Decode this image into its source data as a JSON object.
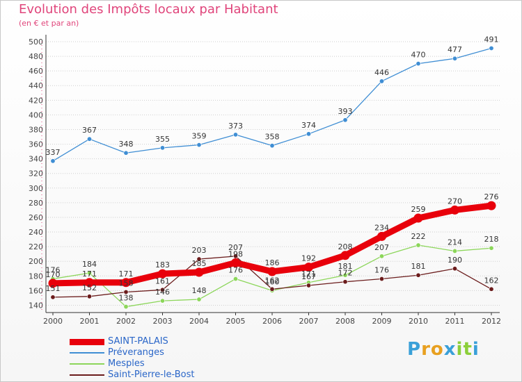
{
  "header": {
    "title": "Evolution des Impôts locaux par Habitant",
    "subtitle": "(en € et par an)"
  },
  "logo": {
    "text": "Proxiti"
  },
  "colors": {
    "title": "#e0457b",
    "legend_text": "#2a66c8",
    "grid": "#cfcfcf",
    "axis": "#333333"
  },
  "chart_data": {
    "type": "line",
    "title": "Evolution des Impôts locaux par Habitant",
    "subtitle": "(en € et par an)",
    "xlabel": "",
    "ylabel": "",
    "categories": [
      "2000",
      "2001",
      "2002",
      "2003",
      "2004",
      "2005",
      "2006",
      "2007",
      "2008",
      "2009",
      "2010",
      "2011",
      "2012"
    ],
    "ylim": [
      130,
      500
    ],
    "yticks": [
      140,
      160,
      180,
      200,
      220,
      240,
      260,
      280,
      300,
      320,
      340,
      360,
      380,
      400,
      420,
      440,
      460,
      480,
      500
    ],
    "grid": "horizontal",
    "legend_position": "bottom-left",
    "series": [
      {
        "name": "SAINT-PALAIS",
        "color": "#e8000b",
        "thick": true,
        "values": [
          170,
          171,
          171,
          183,
          185,
          198,
          186,
          192,
          208,
          234,
          259,
          270,
          276
        ]
      },
      {
        "name": "Préveranges",
        "color": "#3f8ed4",
        "values": [
          337,
          367,
          348,
          355,
          359,
          373,
          358,
          374,
          393,
          446,
          470,
          477,
          491
        ]
      },
      {
        "name": "Mesples",
        "color": "#8cd65a",
        "values": [
          176,
          184,
          138,
          146,
          148,
          176,
          160,
          171,
          181,
          207,
          222,
          214,
          218
        ]
      },
      {
        "name": "Saint-Pierre-le-Bost",
        "color": "#6b1c1c",
        "values": [
          151,
          152,
          158,
          161,
          203,
          207,
          162,
          167,
          172,
          176,
          181,
          190,
          162
        ]
      }
    ]
  }
}
